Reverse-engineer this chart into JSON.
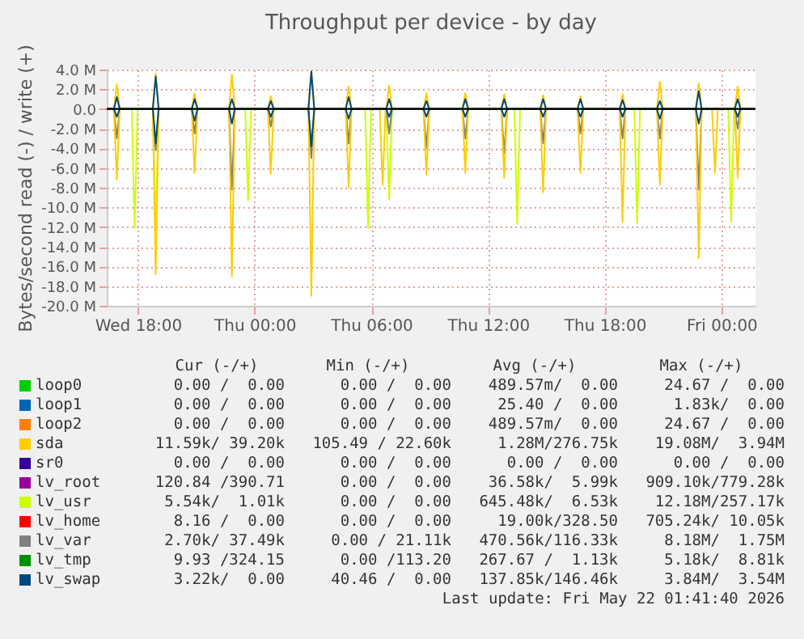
{
  "chart_data": {
    "type": "line",
    "title": "Throughput per device - by day",
    "ylabel": "Bytes/second read (-) / write (+)",
    "xlim": [
      "2026-05-20T16:24",
      "2026-05-22T01:45"
    ],
    "xticks": [
      {
        "value": "2026-05-20T18:00",
        "label": "Wed 18:00"
      },
      {
        "value": "2026-05-21T00:00",
        "label": "Thu 00:00"
      },
      {
        "value": "2026-05-21T06:00",
        "label": "Thu 06:00"
      },
      {
        "value": "2026-05-21T12:00",
        "label": "Thu 12:00"
      },
      {
        "value": "2026-05-21T18:00",
        "label": "Thu 18:00"
      },
      {
        "value": "2026-05-22T00:00",
        "label": "Fri 00:00"
      }
    ],
    "ylim": [
      -20,
      4
    ],
    "yticks": [
      {
        "value": -20,
        "label": "-20.0 M"
      },
      {
        "value": -18,
        "label": "-18.0 M"
      },
      {
        "value": -16,
        "label": "-16.0 M"
      },
      {
        "value": -14,
        "label": "-14.0 M"
      },
      {
        "value": -12,
        "label": "-12.0 M"
      },
      {
        "value": -10,
        "label": "-10.0 M"
      },
      {
        "value": -8,
        "label": "-8.0 M"
      },
      {
        "value": -6,
        "label": "-6.0 M"
      },
      {
        "value": -4,
        "label": "-4.0 M"
      },
      {
        "value": -2,
        "label": "-2.0 M"
      },
      {
        "value": 0,
        "label": "0.0"
      },
      {
        "value": 2,
        "label": "2.0 M"
      },
      {
        "value": 4,
        "label": "4.0 M"
      }
    ],
    "grid": true,
    "legend": "bottom",
    "ref_lines": [
      {
        "axis": "y",
        "value": 0,
        "color": "#000000"
      }
    ],
    "x": [
      "2026-05-20T16:24",
      "2026-05-20T16:46",
      "2026-05-20T16:55",
      "2026-05-20T17:04",
      "2026-05-20T18:46",
      "2026-05-20T18:55",
      "2026-05-20T19:04",
      "2026-05-20T20:46",
      "2026-05-20T20:55",
      "2026-05-20T21:04",
      "2026-05-20T22:41",
      "2026-05-20T22:50",
      "2026-05-20T22:59",
      "2026-05-21T00:41",
      "2026-05-21T00:50",
      "2026-05-21T00:59",
      "2026-05-21T02:46",
      "2026-05-21T02:55",
      "2026-05-21T03:04",
      "2026-05-21T04:41",
      "2026-05-21T04:50",
      "2026-05-21T04:59",
      "2026-05-21T06:46",
      "2026-05-21T06:55",
      "2026-05-21T07:04",
      "2026-05-21T08:41",
      "2026-05-21T08:50",
      "2026-05-21T08:59",
      "2026-05-21T10:41",
      "2026-05-21T10:50",
      "2026-05-21T10:59",
      "2026-05-21T12:41",
      "2026-05-21T12:50",
      "2026-05-21T12:59",
      "2026-05-21T14:41",
      "2026-05-21T14:50",
      "2026-05-21T14:59",
      "2026-05-21T16:36",
      "2026-05-21T16:45",
      "2026-05-21T16:54",
      "2026-05-21T18:46",
      "2026-05-21T18:55",
      "2026-05-21T19:04",
      "2026-05-21T20:41",
      "2026-05-21T20:50",
      "2026-05-21T20:59",
      "2026-05-21T22:41",
      "2026-05-21T22:50",
      "2026-05-21T22:59",
      "2026-05-22T00:41",
      "2026-05-22T00:50",
      "2026-05-22T00:59",
      "2026-05-22T01:45"
    ],
    "series": [
      {
        "name": "loop0",
        "color": "#00cc00",
        "values": [
          null,
          null,
          null,
          null,
          null,
          null,
          null,
          null,
          null,
          null,
          null,
          null,
          null,
          null,
          null,
          null,
          null,
          null,
          null,
          null,
          null,
          null,
          null,
          null,
          null,
          null,
          null,
          null,
          null,
          null,
          null,
          null,
          null,
          null,
          null,
          null,
          null,
          null,
          null,
          null,
          null,
          null,
          null,
          null,
          null,
          null,
          null,
          null,
          null,
          null,
          null,
          null,
          null
        ]
      },
      {
        "name": "loop1",
        "color": "#0066b3",
        "values": [
          null,
          null,
          null,
          null,
          null,
          null,
          null,
          null,
          null,
          null,
          null,
          null,
          null,
          null,
          null,
          null,
          null,
          null,
          null,
          null,
          null,
          null,
          null,
          null,
          null,
          null,
          null,
          null,
          null,
          null,
          null,
          null,
          null,
          null,
          null,
          null,
          null,
          null,
          null,
          null,
          null,
          null,
          null,
          null,
          null,
          null,
          null,
          null,
          null,
          null,
          null,
          null,
          null
        ]
      },
      {
        "name": "loop2",
        "color": "#ff8000",
        "values": [
          null,
          null,
          null,
          null,
          null,
          null,
          null,
          null,
          null,
          null,
          null,
          null,
          null,
          null,
          null,
          null,
          null,
          null,
          null,
          null,
          null,
          null,
          null,
          null,
          null,
          null,
          null,
          null,
          null,
          null,
          null,
          null,
          null,
          null,
          null,
          null,
          null,
          null,
          null,
          null,
          null,
          null,
          null,
          null,
          null,
          null,
          null,
          null,
          null,
          null,
          null,
          null,
          null
        ]
      },
      {
        "name": "sda",
        "color": "#ffcc00",
        "values": [
          0,
          0,
          2.5,
          0,
          0,
          3.6,
          0,
          0,
          1.6,
          0,
          0,
          3.5,
          0,
          0,
          1.3,
          0,
          0,
          3.9,
          0,
          0,
          2.3,
          0,
          0,
          2.4,
          0,
          0,
          1.6,
          0,
          0,
          1.6,
          0,
          0,
          1.5,
          0,
          0,
          1.4,
          0,
          0,
          1.3,
          0,
          0,
          1.5,
          0,
          0,
          2.8,
          0,
          0,
          2.6,
          0,
          0,
          2.3,
          0,
          0
        ]
      },
      {
        "name": "sr0",
        "color": "#330099",
        "values": [
          null,
          null,
          null,
          null,
          null,
          null,
          null,
          null,
          null,
          null,
          null,
          null,
          null,
          null,
          null,
          null,
          null,
          null,
          null,
          null,
          null,
          null,
          null,
          null,
          null,
          null,
          null,
          null,
          null,
          null,
          null,
          null,
          null,
          null,
          null,
          null,
          null,
          null,
          null,
          null,
          null,
          null,
          null,
          null,
          null,
          null,
          null,
          null,
          null,
          null,
          null,
          null,
          null
        ]
      },
      {
        "name": "lv_root",
        "color": "#990099",
        "values": [
          null,
          null,
          null,
          null,
          null,
          null,
          null,
          null,
          null,
          null,
          null,
          null,
          null,
          null,
          null,
          null,
          null,
          null,
          null,
          null,
          null,
          null,
          null,
          null,
          null,
          null,
          null,
          null,
          null,
          null,
          null,
          null,
          null,
          null,
          null,
          null,
          null,
          null,
          null,
          null,
          null,
          null,
          null,
          null,
          null,
          null,
          null,
          null,
          null,
          null,
          null,
          null,
          null
        ]
      },
      {
        "name": "lv_usr",
        "color": "#ccff00",
        "x": [
          "2026-05-20T16:24",
          "2026-05-20T17:41",
          "2026-05-20T17:50",
          "2026-05-20T17:59",
          "2026-05-20T18:46",
          "2026-05-20T18:55",
          "2026-05-20T19:04",
          "2026-05-20T23:31",
          "2026-05-20T23:40",
          "2026-05-20T23:49",
          "2026-05-21T05:41",
          "2026-05-21T05:50",
          "2026-05-21T05:59",
          "2026-05-21T06:46",
          "2026-05-21T06:55",
          "2026-05-21T07:04",
          "2026-05-21T13:21",
          "2026-05-21T13:30",
          "2026-05-21T13:39",
          "2026-05-21T19:31",
          "2026-05-21T19:40",
          "2026-05-21T19:49",
          "2026-05-22T00:21",
          "2026-05-22T00:30",
          "2026-05-22T00:39",
          "2026-05-22T01:45"
        ],
        "values": [
          0,
          0,
          -12.1,
          0,
          0,
          -12.0,
          0,
          0,
          -9.3,
          0,
          0,
          -12.1,
          0,
          0,
          -9.2,
          0,
          0,
          -11.7,
          0,
          0,
          -11.6,
          0,
          0,
          -11.5,
          0,
          0
        ]
      },
      {
        "name": "lv_home",
        "color": "#ff0000",
        "values": [
          null,
          null,
          null,
          null,
          null,
          null,
          null,
          null,
          null,
          null,
          null,
          null,
          null,
          null,
          null,
          null,
          null,
          null,
          null,
          null,
          null,
          null,
          null,
          null,
          null,
          null,
          null,
          null,
          null,
          null,
          null,
          null,
          null,
          null,
          null,
          null,
          null,
          null,
          null,
          null,
          null,
          null,
          null,
          null,
          null,
          null,
          null,
          null,
          null,
          null,
          null,
          null,
          null
        ]
      },
      {
        "name": "lv_var",
        "color": "#808080",
        "values": [
          0,
          0,
          -3.0,
          0,
          0,
          -4.2,
          0,
          0,
          -2.5,
          0,
          0,
          -8.2,
          0,
          0,
          -1.8,
          0,
          0,
          -5.0,
          0,
          0,
          -3.5,
          0,
          0,
          -2.5,
          0,
          0,
          -4.0,
          0,
          0,
          -3.0,
          0,
          0,
          -4.5,
          0,
          0,
          -3.5,
          0,
          0,
          -2.5,
          0,
          0,
          -3.0,
          0,
          0,
          -3.0,
          0,
          0,
          -8.2,
          0,
          0,
          -2.0,
          0,
          0
        ]
      },
      {
        "name": "lv_tmp",
        "color": "#008f00",
        "values": [
          null,
          null,
          null,
          null,
          null,
          null,
          null,
          null,
          null,
          null,
          null,
          null,
          null,
          null,
          null,
          null,
          null,
          null,
          null,
          null,
          null,
          null,
          null,
          null,
          null,
          null,
          null,
          null,
          null,
          null,
          null,
          null,
          null,
          null,
          null,
          null,
          null,
          null,
          null,
          null,
          null,
          null,
          null,
          null,
          null,
          null,
          null,
          null,
          null,
          null,
          null,
          null,
          null
        ]
      },
      {
        "name": "lv_swap",
        "color": "#00487d",
        "values": [
          0,
          0,
          1.2,
          0,
          0,
          3.3,
          0,
          0,
          1.0,
          0,
          0,
          1.0,
          0,
          0,
          0.8,
          0,
          0,
          3.8,
          0,
          0,
          1.2,
          0,
          0,
          1.0,
          0,
          0,
          0.8,
          0,
          0,
          1.0,
          0,
          0,
          1.0,
          0,
          0,
          1.0,
          0,
          0,
          1.0,
          0,
          0,
          0.9,
          0,
          0,
          0.8,
          0,
          0,
          1.8,
          0,
          0,
          1.0,
          0,
          0
        ]
      },
      {
        "color": "#ffcc00",
        "x": [
          "2026-05-20T16:24",
          "2026-05-20T16:46",
          "2026-05-20T16:55",
          "2026-05-20T17:04",
          "2026-05-20T18:46",
          "2026-05-20T18:55",
          "2026-05-20T19:04",
          "2026-05-20T20:46",
          "2026-05-20T20:55",
          "2026-05-20T21:04",
          "2026-05-20T22:41",
          "2026-05-20T22:50",
          "2026-05-20T22:59",
          "2026-05-21T00:41",
          "2026-05-21T00:50",
          "2026-05-21T00:59",
          "2026-05-21T02:46",
          "2026-05-21T02:55",
          "2026-05-21T03:04",
          "2026-05-21T04:41",
          "2026-05-21T04:50",
          "2026-05-21T04:59",
          "2026-05-21T06:26",
          "2026-05-21T06:35",
          "2026-05-21T06:44",
          "2026-05-21T08:41",
          "2026-05-21T08:50",
          "2026-05-21T08:59",
          "2026-05-21T10:41",
          "2026-05-21T10:50",
          "2026-05-21T10:59",
          "2026-05-21T12:41",
          "2026-05-21T12:50",
          "2026-05-21T12:59",
          "2026-05-21T14:41",
          "2026-05-21T14:50",
          "2026-05-21T14:59",
          "2026-05-21T16:36",
          "2026-05-21T16:45",
          "2026-05-21T16:54",
          "2026-05-21T18:46",
          "2026-05-21T18:55",
          "2026-05-21T19:04",
          "2026-05-21T20:41",
          "2026-05-21T20:50",
          "2026-05-21T20:59",
          "2026-05-21T22:41",
          "2026-05-21T22:50",
          "2026-05-21T22:59",
          "2026-05-21T23:31",
          "2026-05-21T23:40",
          "2026-05-21T23:49",
          "2026-05-22T00:41",
          "2026-05-22T00:50",
          "2026-05-22T00:59",
          "2026-05-22T01:45"
        ],
        "values": [
          0,
          0,
          -7.2,
          0,
          0,
          -16.8,
          0,
          0,
          -6.5,
          0,
          0,
          -17.0,
          0,
          0,
          -6.6,
          0,
          0,
          -19.0,
          0,
          0,
          -8.0,
          0,
          0,
          -7.7,
          0,
          0,
          -6.7,
          0,
          0,
          -6.5,
          0,
          0,
          -7.0,
          0,
          0,
          -8.5,
          0,
          0,
          -6.5,
          0,
          0,
          -11.5,
          0,
          0,
          -7.7,
          0,
          0,
          -15.2,
          0,
          0,
          -6.5,
          0,
          0,
          -7.0,
          0,
          0
        ]
      },
      {
        "color": "#00487d",
        "values": [
          0,
          0,
          -0.8,
          0,
          0,
          -3.5,
          0,
          0,
          -1.2,
          0,
          0,
          -1.5,
          0,
          0,
          -0.8,
          0,
          0,
          -3.8,
          0,
          0,
          -1.0,
          0,
          0,
          -0.8,
          0,
          0,
          -0.8,
          0,
          0,
          -0.8,
          0,
          0,
          -0.8,
          0,
          0,
          -0.8,
          0,
          0,
          -0.8,
          0,
          0,
          -0.8,
          0,
          0,
          -1.0,
          0,
          0,
          -1.5,
          0,
          0,
          -0.8,
          0,
          0
        ]
      }
    ],
    "annotations": [
      "Cur (-/+)",
      "Min (-/+)",
      "Avg (-/+)",
      "Max (-/+)",
      "0.00 /  0.00",
      "0.00 /  0.00",
      "489.57m/  0.00",
      "24.67 /  0.00",
      "0.00 /  0.00",
      "0.00 /  0.00",
      "25.40 /  0.00",
      "1.83k/  0.00",
      "0.00 /  0.00",
      "0.00 /  0.00",
      "489.57m/  0.00",
      "24.67 /  0.00",
      "11.59k/ 39.20k",
      "105.49 / 22.60k",
      "1.28M/276.75k",
      "19.08M/  3.94M",
      "0.00 /  0.00",
      "0.00 /  0.00",
      "0.00 /  0.00",
      "0.00 /  0.00",
      "120.84 /390.71",
      "0.00 /  0.00",
      "36.58k/  5.99k",
      "909.10k/779.28k",
      "5.54k/  1.01k",
      "0.00 /  0.00",
      "645.48k/  6.53k",
      "12.18M/257.17k",
      "8.16 /  0.00",
      "0.00 /  0.00",
      "19.00k/328.50",
      "705.24k/ 10.05k",
      "2.70k/ 37.49k",
      "0.00 / 21.11k",
      "470.56k/116.33k",
      "8.18M/  1.75M",
      "9.93 /324.15",
      "0.00 /113.20",
      "267.67 /  1.13k",
      "5.18k/  8.81k",
      "3.22k/  0.00",
      "40.46 /  0.00",
      "137.85k/146.46k",
      "3.84M/  3.54M",
      "Last update: Fri May 22 01:41:40 2026"
    ]
  }
}
